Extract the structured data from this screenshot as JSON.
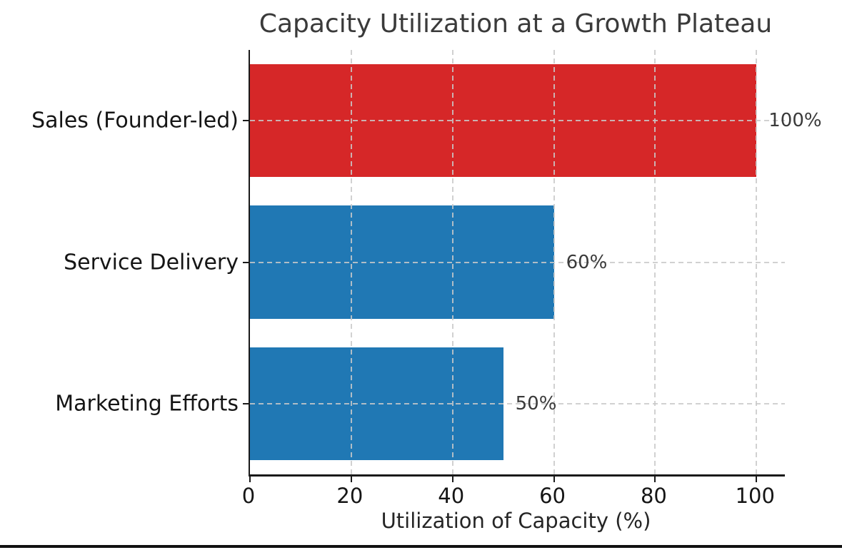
{
  "chart_data": {
    "type": "bar",
    "orientation": "horizontal",
    "title": "Capacity Utilization at a Growth Plateau",
    "xlabel": "Utilization of Capacity (%)",
    "ylabel": "",
    "categories": [
      "Sales (Founder-led)",
      "Service Delivery",
      "Marketing Efforts"
    ],
    "values": [
      100,
      60,
      50
    ],
    "value_labels": [
      "100%",
      "60%",
      "50%"
    ],
    "bar_colors": [
      "#d62728",
      "#2078b4",
      "#2078b4"
    ],
    "highlight_color": "#d62728",
    "base_color": "#2078b4",
    "xlim": [
      0,
      105.6
    ],
    "xticks": [
      0,
      20,
      40,
      60,
      80,
      100
    ],
    "xtick_labels": [
      "0",
      "20",
      "40",
      "60",
      "80",
      "100"
    ],
    "grid": true,
    "grid_style": "dashed",
    "grid_color": "#c9c9c9",
    "legend": false
  }
}
